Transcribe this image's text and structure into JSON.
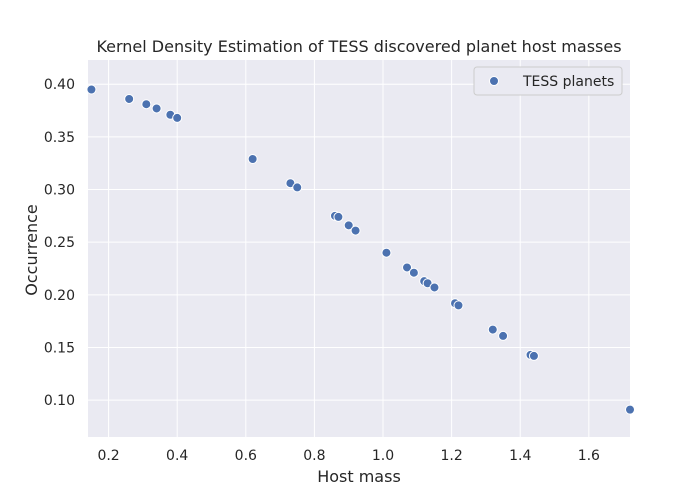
{
  "chart_data": {
    "type": "scatter",
    "title": "Kernel Density Estimation of TESS discovered planet host masses",
    "xlabel": "Host mass",
    "ylabel": "Occurrence",
    "xlim": [
      0.14,
      1.72
    ],
    "ylim": [
      0.065,
      0.423
    ],
    "xticks": [
      "0.2",
      "0.4",
      "0.6",
      "0.8",
      "1.0",
      "1.2",
      "1.4",
      "1.6"
    ],
    "yticks": [
      "0.10",
      "0.15",
      "0.20",
      "0.25",
      "0.30",
      "0.35",
      "0.40"
    ],
    "grid": true,
    "legend_position": "top-right",
    "series": [
      {
        "name": "TESS planets",
        "color": "#4c72b0",
        "x": [
          0.15,
          0.26,
          0.31,
          0.34,
          0.38,
          0.4,
          0.62,
          0.73,
          0.75,
          0.86,
          0.87,
          0.9,
          0.92,
          1.01,
          1.07,
          1.09,
          1.12,
          1.13,
          1.15,
          1.21,
          1.22,
          1.32,
          1.35,
          1.43,
          1.44,
          1.72
        ],
        "y": [
          0.395,
          0.386,
          0.381,
          0.377,
          0.371,
          0.368,
          0.329,
          0.306,
          0.302,
          0.275,
          0.274,
          0.266,
          0.261,
          0.24,
          0.226,
          0.221,
          0.213,
          0.211,
          0.207,
          0.192,
          0.19,
          0.167,
          0.161,
          0.143,
          0.142,
          0.091
        ]
      }
    ]
  },
  "colors": {
    "plot_background": "#eaeaf2",
    "grid": "#ffffff",
    "marker": "#4c72b0",
    "text": "#262626"
  }
}
